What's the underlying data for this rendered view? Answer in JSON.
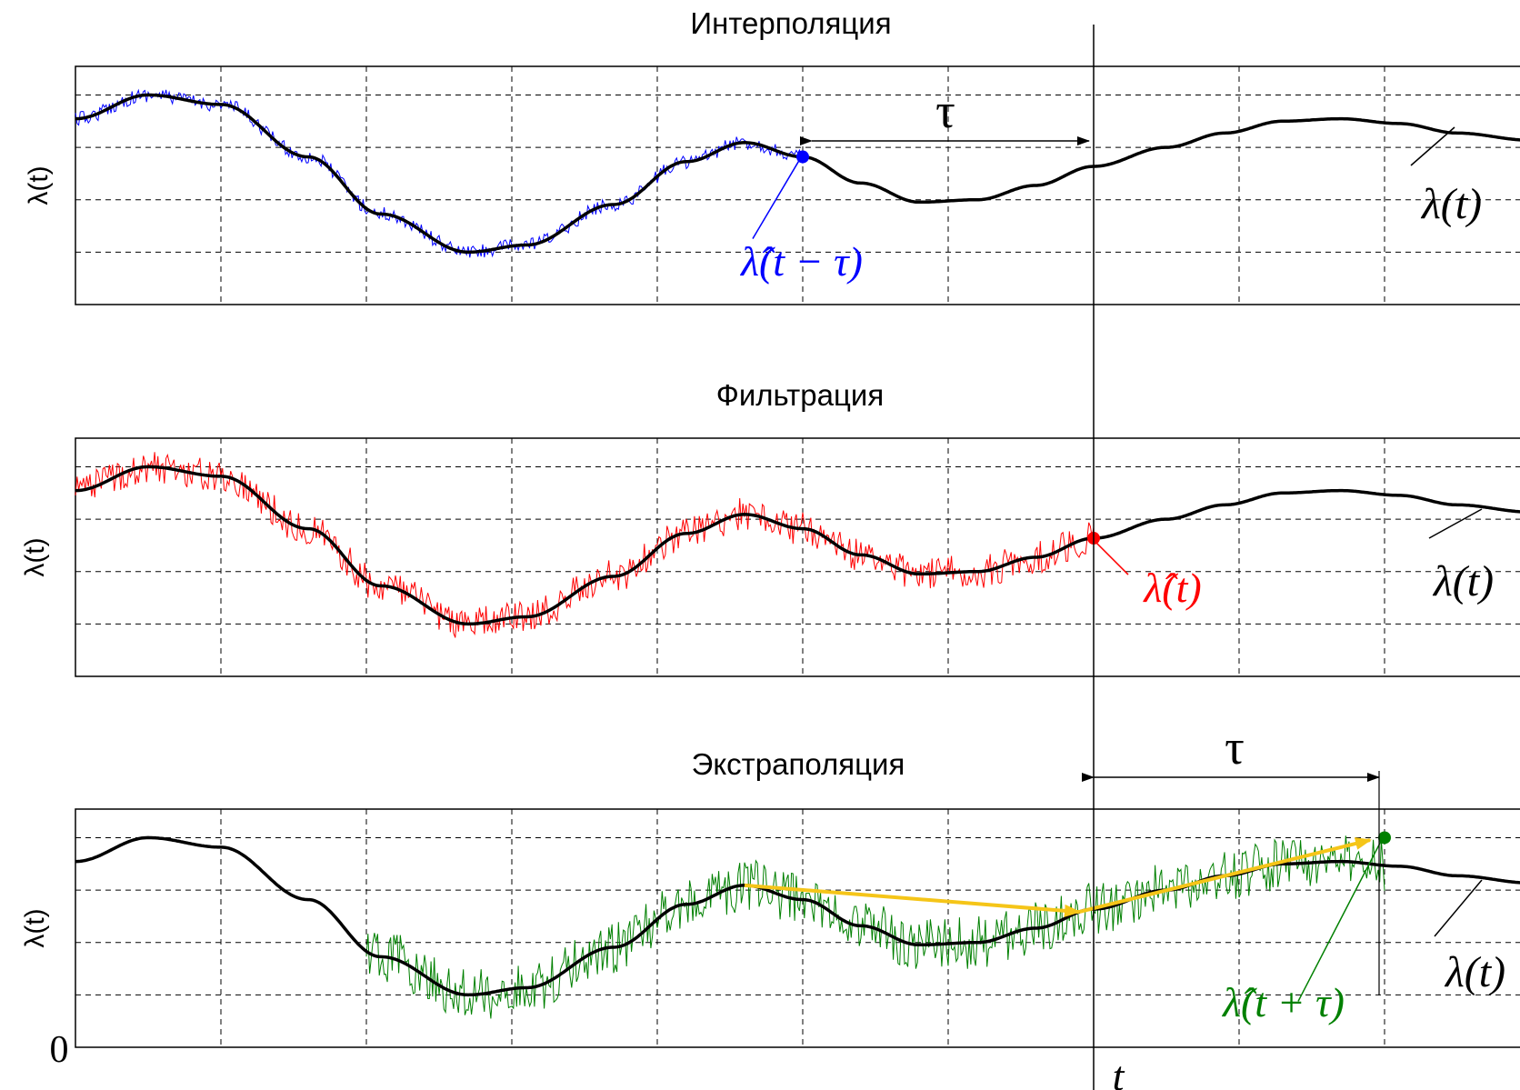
{
  "chart_data": [
    {
      "id": "interpolation",
      "type": "line",
      "title": "Интерполяция",
      "ylabel": "λ(t)",
      "grid": true,
      "true_signal": {
        "label": "λ(t)",
        "color": "#000000"
      },
      "estimate": {
        "label": "λ̂(t − τ)",
        "color": "#0000ff",
        "end_fraction": 0.5
      },
      "shift_label": "τ"
    },
    {
      "id": "filtration",
      "type": "line",
      "title": "Фильтрация",
      "ylabel": "λ(t)",
      "grid": true,
      "true_signal": {
        "label": "λ(t)",
        "color": "#000000"
      },
      "estimate": {
        "label": "λ̂(t)",
        "color": "#ff0000",
        "end_fraction": 0.7
      }
    },
    {
      "id": "extrapolation",
      "type": "line",
      "title": "Экстраполяция",
      "ylabel": "λ(t)",
      "grid": true,
      "true_signal": {
        "label": "λ(t)",
        "color": "#000000"
      },
      "estimate": {
        "label": "λ̂(t + τ)",
        "color": "#008000",
        "start_fraction": 0.2,
        "end_fraction": 0.9
      },
      "prediction_arrows_color": "#f5c518",
      "shift_label": "τ",
      "y_origin_label": "0",
      "x_marker_label": "t"
    }
  ]
}
